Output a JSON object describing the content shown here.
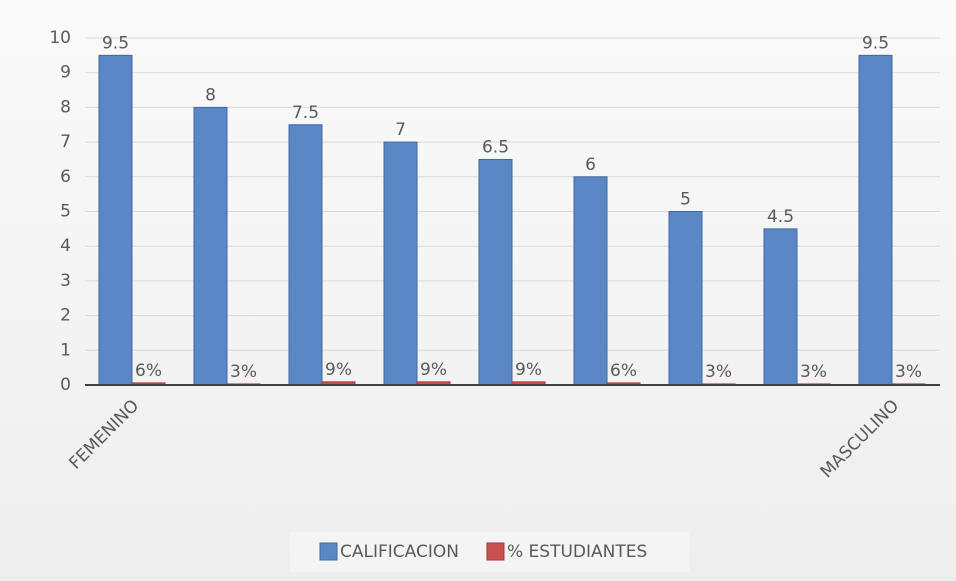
{
  "chart_data": {
    "type": "bar",
    "categories": [
      "FEMENINO",
      null,
      null,
      null,
      null,
      null,
      null,
      null,
      "MASCULINO"
    ],
    "series": [
      {
        "name": "CALIFICACION",
        "color": "#5b87c6",
        "values": [
          9.5,
          8,
          7.5,
          7,
          6.5,
          6,
          5,
          4.5,
          9.5
        ]
      },
      {
        "name": "% ESTUDIANTES",
        "color": "#c9504d",
        "values": [
          0.06,
          0.03,
          0.09,
          0.09,
          0.09,
          0.06,
          0.03,
          0.03,
          0.03
        ],
        "value_labels": [
          "6%",
          "3%",
          "9%",
          "9%",
          "9%",
          "6%",
          "3%",
          "3%",
          "3%"
        ]
      }
    ],
    "ylim": [
      0,
      10
    ],
    "yticks": [
      0,
      1,
      2,
      3,
      4,
      5,
      6,
      7,
      8,
      9,
      10
    ],
    "grid": true,
    "legend": "bottom"
  }
}
